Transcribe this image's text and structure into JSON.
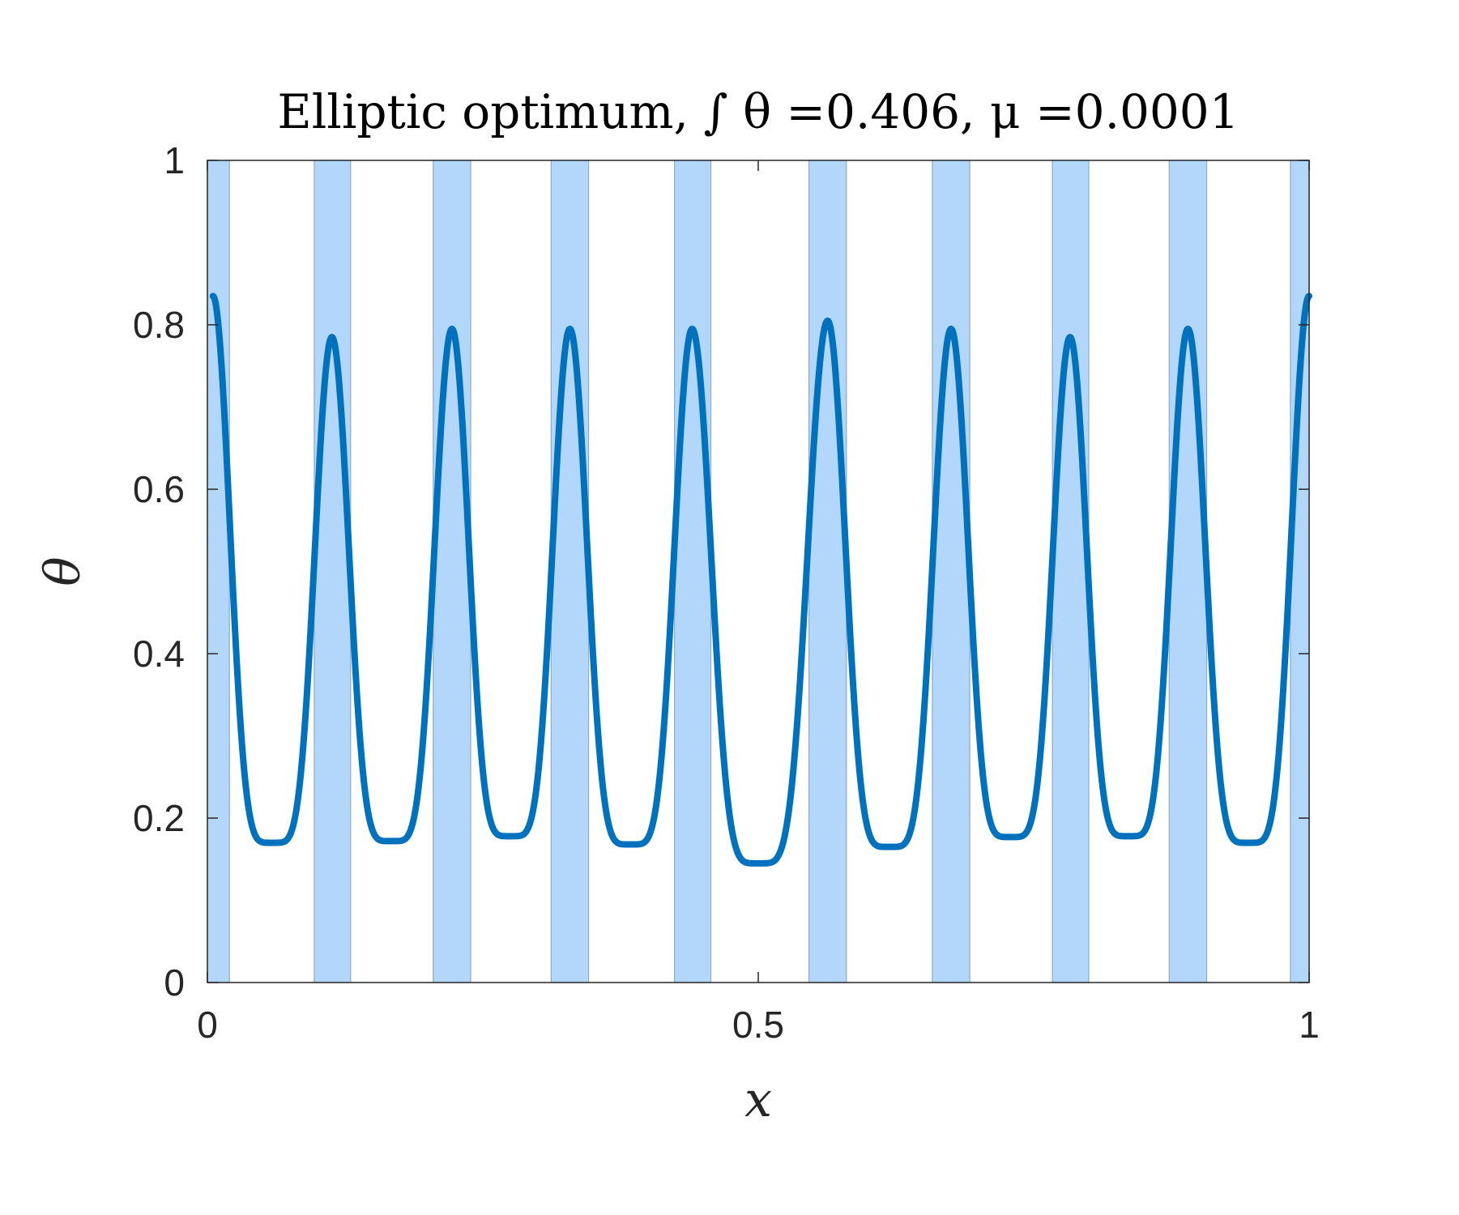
{
  "chart_data": {
    "type": "line",
    "title": "Elliptic optimum, ∫ θ =0.406, μ =0.0001",
    "xlabel": "x",
    "ylabel": "θ",
    "xlim": [
      0,
      1
    ],
    "ylim": [
      0,
      1
    ],
    "xticks": [
      0,
      0.5,
      1
    ],
    "xtick_labels": [
      "0",
      "0.5",
      "1"
    ],
    "yticks": [
      0,
      0.2,
      0.4,
      0.6,
      0.8,
      1
    ],
    "ytick_labels": [
      "0",
      "0.2",
      "0.4",
      "0.6",
      "0.8",
      "1"
    ],
    "grid": false,
    "line_color": "#0072BD",
    "band_color": "#B3D7FA",
    "band_edge_color": "#8FA9C9",
    "bands": [
      [
        0.0,
        0.02
      ],
      [
        0.097,
        0.13
      ],
      [
        0.205,
        0.239
      ],
      [
        0.312,
        0.346
      ],
      [
        0.424,
        0.457
      ],
      [
        0.546,
        0.58
      ],
      [
        0.658,
        0.692
      ],
      [
        0.767,
        0.8
      ],
      [
        0.873,
        0.907
      ],
      [
        0.983,
        1.0
      ]
    ],
    "peaks": [
      {
        "x": 0.005,
        "y": 0.835
      },
      {
        "x": 0.113,
        "y": 0.785
      },
      {
        "x": 0.222,
        "y": 0.795
      },
      {
        "x": 0.329,
        "y": 0.795
      },
      {
        "x": 0.44,
        "y": 0.795
      },
      {
        "x": 0.563,
        "y": 0.805
      },
      {
        "x": 0.675,
        "y": 0.795
      },
      {
        "x": 0.783,
        "y": 0.785
      },
      {
        "x": 0.89,
        "y": 0.795
      },
      {
        "x": 1.0,
        "y": 0.835
      }
    ],
    "troughs": [
      {
        "x": 0.059,
        "y": 0.17
      },
      {
        "x": 0.167,
        "y": 0.172
      },
      {
        "x": 0.275,
        "y": 0.178
      },
      {
        "x": 0.384,
        "y": 0.168
      },
      {
        "x": 0.5,
        "y": 0.145
      },
      {
        "x": 0.619,
        "y": 0.165
      },
      {
        "x": 0.729,
        "y": 0.177
      },
      {
        "x": 0.836,
        "y": 0.178
      },
      {
        "x": 0.945,
        "y": 0.17
      }
    ]
  }
}
